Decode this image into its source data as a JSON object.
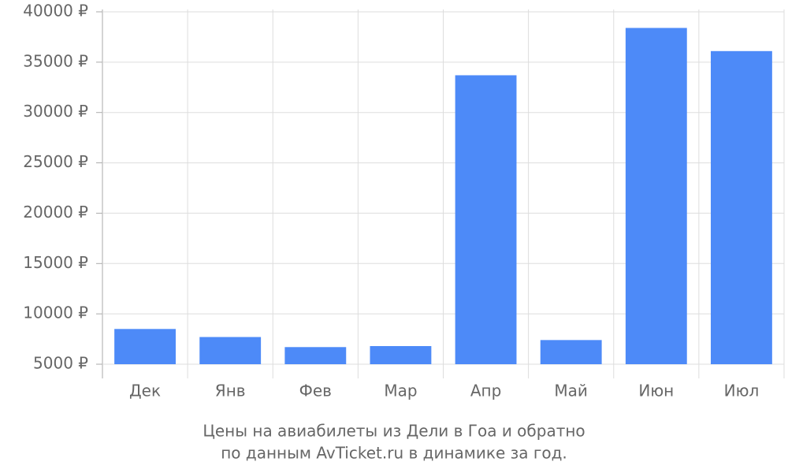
{
  "chart_data": {
    "type": "bar",
    "title": "Цены на авиабилеты из Дели в Гоа и обратно",
    "subtitle": "по данным AvTicket.ru в динамике за год.",
    "categories": [
      "Дек",
      "Янв",
      "Фев",
      "Мар",
      "Апр",
      "Май",
      "Июн",
      "Июл"
    ],
    "values": [
      8500,
      7700,
      6700,
      6800,
      33700,
      7400,
      38400,
      36100
    ],
    "color": "#4d8af8",
    "ylim": [
      5000,
      40000
    ],
    "yticks": [
      {
        "value": 5000,
        "label": "5000 ₽"
      },
      {
        "value": 10000,
        "label": "10000 ₽"
      },
      {
        "value": 15000,
        "label": "15000 ₽"
      },
      {
        "value": 20000,
        "label": "20000 ₽"
      },
      {
        "value": 25000,
        "label": "25000 ₽"
      },
      {
        "value": 30000,
        "label": "30000 ₽"
      },
      {
        "value": 35000,
        "label": "35000 ₽"
      },
      {
        "value": 40000,
        "label": "40000 ₽"
      }
    ],
    "grid": true
  }
}
